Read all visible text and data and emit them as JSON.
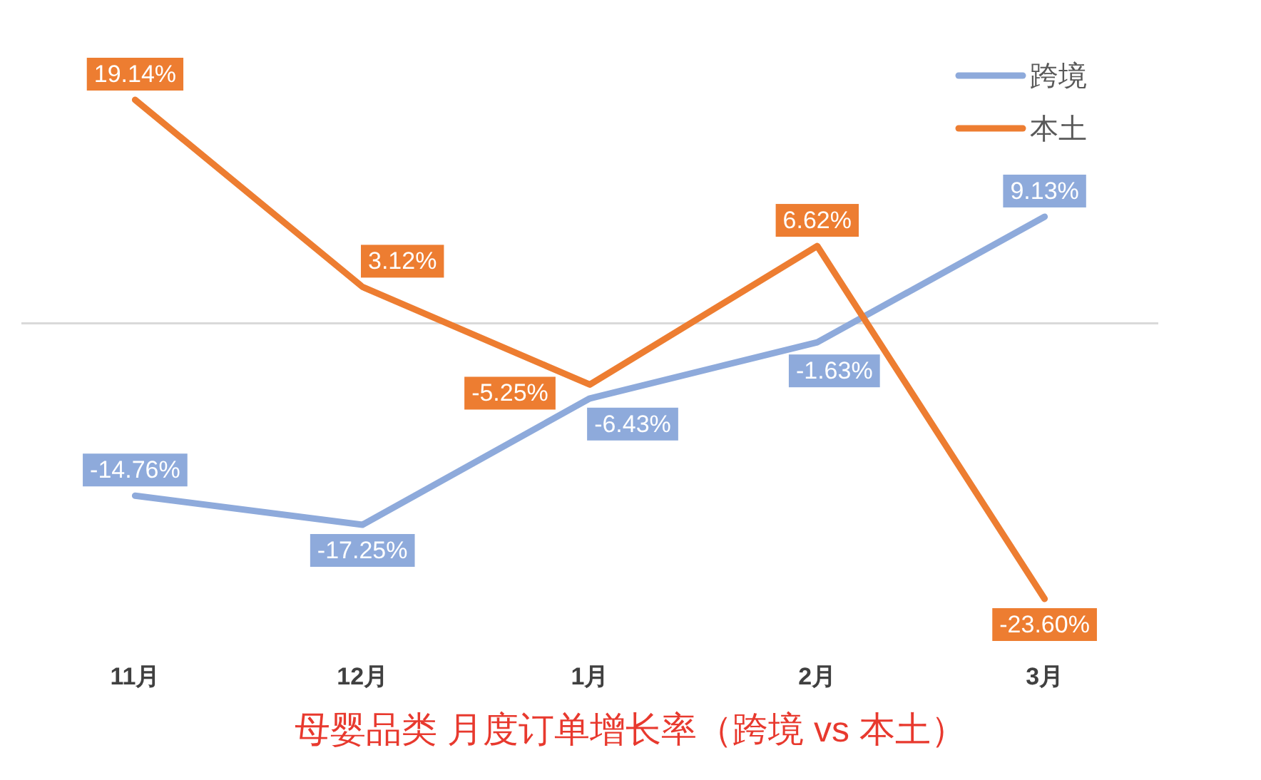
{
  "chart_data": {
    "type": "line",
    "title": "母婴品类 月度订单增长率（跨境 vs 本土）",
    "categories": [
      "11月",
      "12月",
      "1月",
      "2月",
      "3月"
    ],
    "series": [
      {
        "name": "跨境",
        "color": "#8eaadb",
        "values": [
          -14.76,
          -17.25,
          -6.43,
          -1.63,
          9.13
        ],
        "value_labels": [
          "-14.76%",
          "-17.25%",
          "-6.43%",
          "-1.63%",
          "9.13%"
        ]
      },
      {
        "name": "本土",
        "color": "#ed7d31",
        "values": [
          19.14,
          3.12,
          -5.25,
          6.62,
          -23.6
        ],
        "value_labels": [
          "19.14%",
          "3.12%",
          "-5.25%",
          "6.62%",
          "-23.60%"
        ]
      }
    ],
    "legend": "top right"
  }
}
